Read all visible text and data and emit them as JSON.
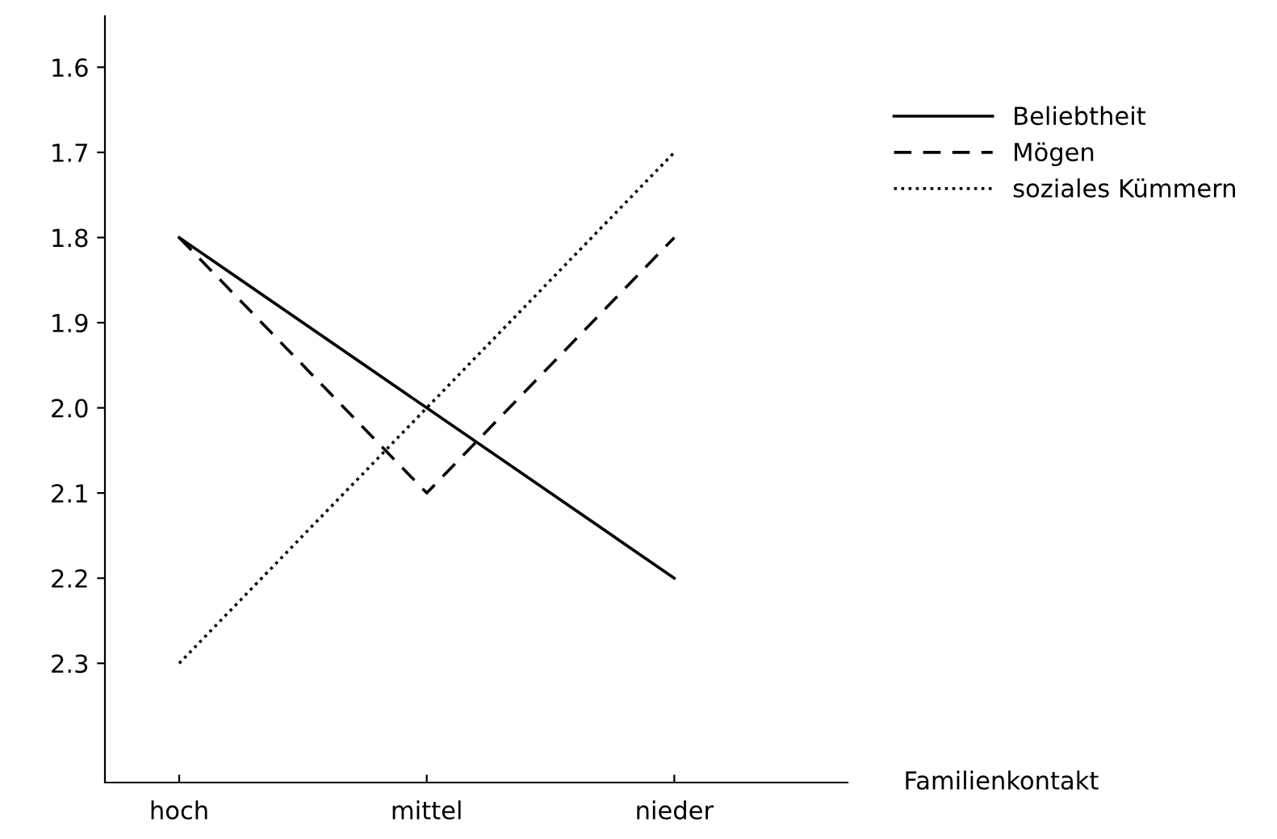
{
  "chart_data": {
    "type": "line",
    "xlabel": "Familienkontakt",
    "categories": [
      "hoch",
      "mittel",
      "nieder"
    ],
    "ylim": [
      2.44,
      1.54
    ],
    "yticks": [
      1.6,
      1.7,
      1.8,
      1.9,
      {
        "value": 2.0,
        "label": "2.0"
      },
      2.1,
      2.2,
      2.3
    ],
    "grid": false,
    "legend": "right",
    "marker": "none",
    "series": [
      {
        "name": "Beliebtheit",
        "color": "#000000",
        "line_style": "solid",
        "values": [
          1.8,
          2.0,
          2.2
        ]
      },
      {
        "name": "Mögen",
        "color": "#000000",
        "line_style": "dashed",
        "values": [
          1.8,
          2.1,
          1.8
        ]
      },
      {
        "name": "soziales Kümmern",
        "color": "#000000",
        "line_style": "dotted",
        "values": [
          2.3,
          2.0,
          1.7
        ]
      }
    ]
  }
}
